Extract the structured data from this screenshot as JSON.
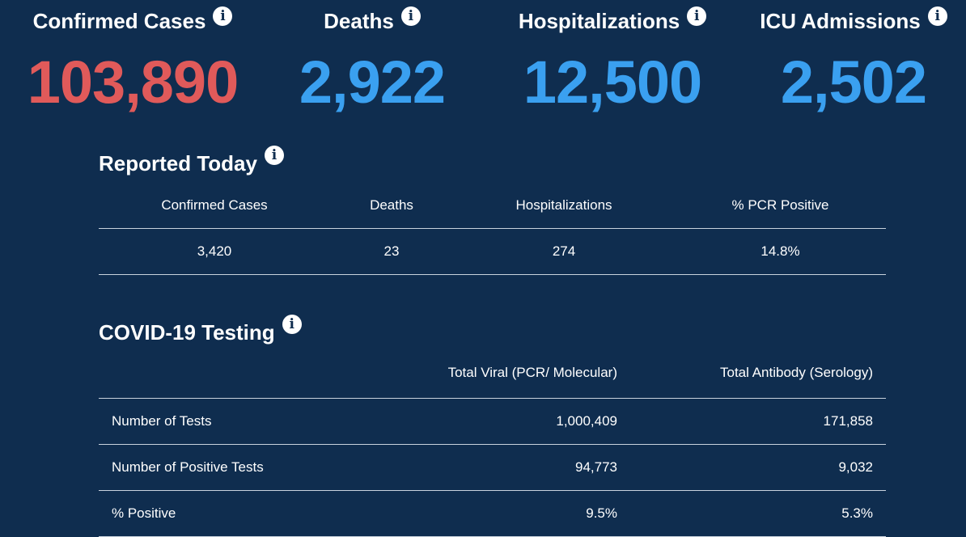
{
  "top_stats": [
    {
      "label": "Confirmed Cases",
      "value": "103,890",
      "color": "#e05a5a"
    },
    {
      "label": "Deaths",
      "value": "2,922",
      "color": "#3aa0f0"
    },
    {
      "label": "Hospitalizations",
      "value": "12,500",
      "color": "#3aa0f0"
    },
    {
      "label": "ICU Admissions",
      "value": "2,502",
      "color": "#3aa0f0"
    }
  ],
  "reported_today": {
    "title": "Reported Today",
    "headers": [
      "Confirmed Cases",
      "Deaths",
      "Hospitalizations",
      "% PCR Positive"
    ],
    "values": [
      "3,420",
      "23",
      "274",
      "14.8%"
    ]
  },
  "testing": {
    "title": "COVID-19 Testing",
    "headers": [
      "",
      "Total Viral (PCR/ Molecular)",
      "Total Antibody (Serology)"
    ],
    "rows": [
      {
        "label": "Number of Tests",
        "viral": "1,000,409",
        "antibody": "171,858"
      },
      {
        "label": "Number of Positive Tests",
        "viral": "94,773",
        "antibody": "9,032"
      },
      {
        "label": "% Positive",
        "viral": "9.5%",
        "antibody": "5.3%"
      }
    ]
  },
  "icons": {
    "info": "info-icon",
    "info_glyph": "i"
  }
}
